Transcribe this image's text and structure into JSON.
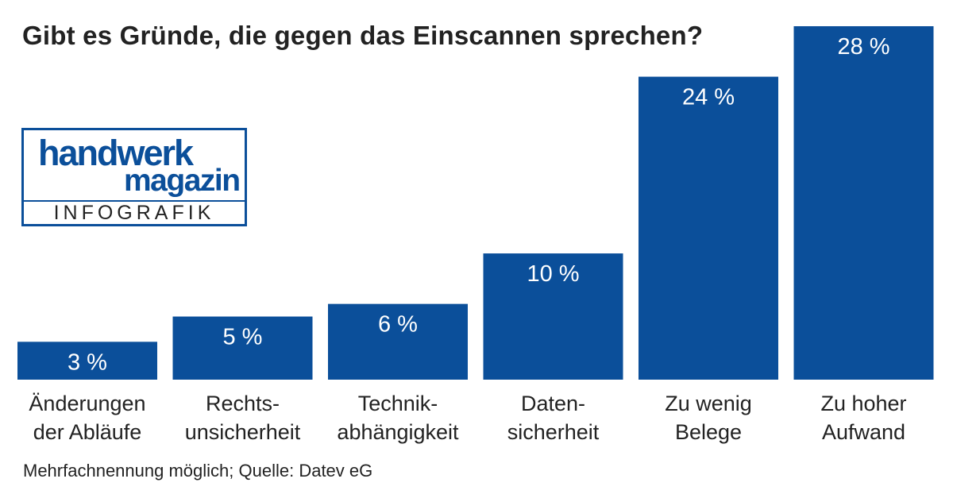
{
  "title": "Gibt es Gründe, die gegen das Einscannen sprechen?",
  "logo": {
    "line1": "handwerk",
    "line2": "magazin",
    "subtitle": "INFOGRAFIK"
  },
  "footnote": "Mehrfachnennung möglich; Quelle: Datev eG",
  "colors": {
    "bar": "#0b4f9a",
    "bar_text": "#ffffff",
    "logo": "#0b4f9a"
  },
  "chart_data": {
    "type": "bar",
    "title": "Gibt es Gründe, die gegen das Einscannen sprechen?",
    "categories": [
      [
        "Änderungen",
        "der Abläufe"
      ],
      [
        "Rechts-",
        "unsicherheit"
      ],
      [
        "Technik-",
        "abhängigkeit"
      ],
      [
        "Daten-",
        "sicherheit"
      ],
      [
        "Zu wenig",
        "Belege"
      ],
      [
        "Zu hoher",
        "Aufwand"
      ]
    ],
    "values": [
      3,
      5,
      6,
      10,
      24,
      28
    ],
    "value_labels": [
      "3 %",
      "5 %",
      "6 %",
      "10 %",
      "24 %",
      "28 %"
    ],
    "unit": "%",
    "ylim": [
      0,
      28
    ],
    "grid": false,
    "legend": "none"
  }
}
